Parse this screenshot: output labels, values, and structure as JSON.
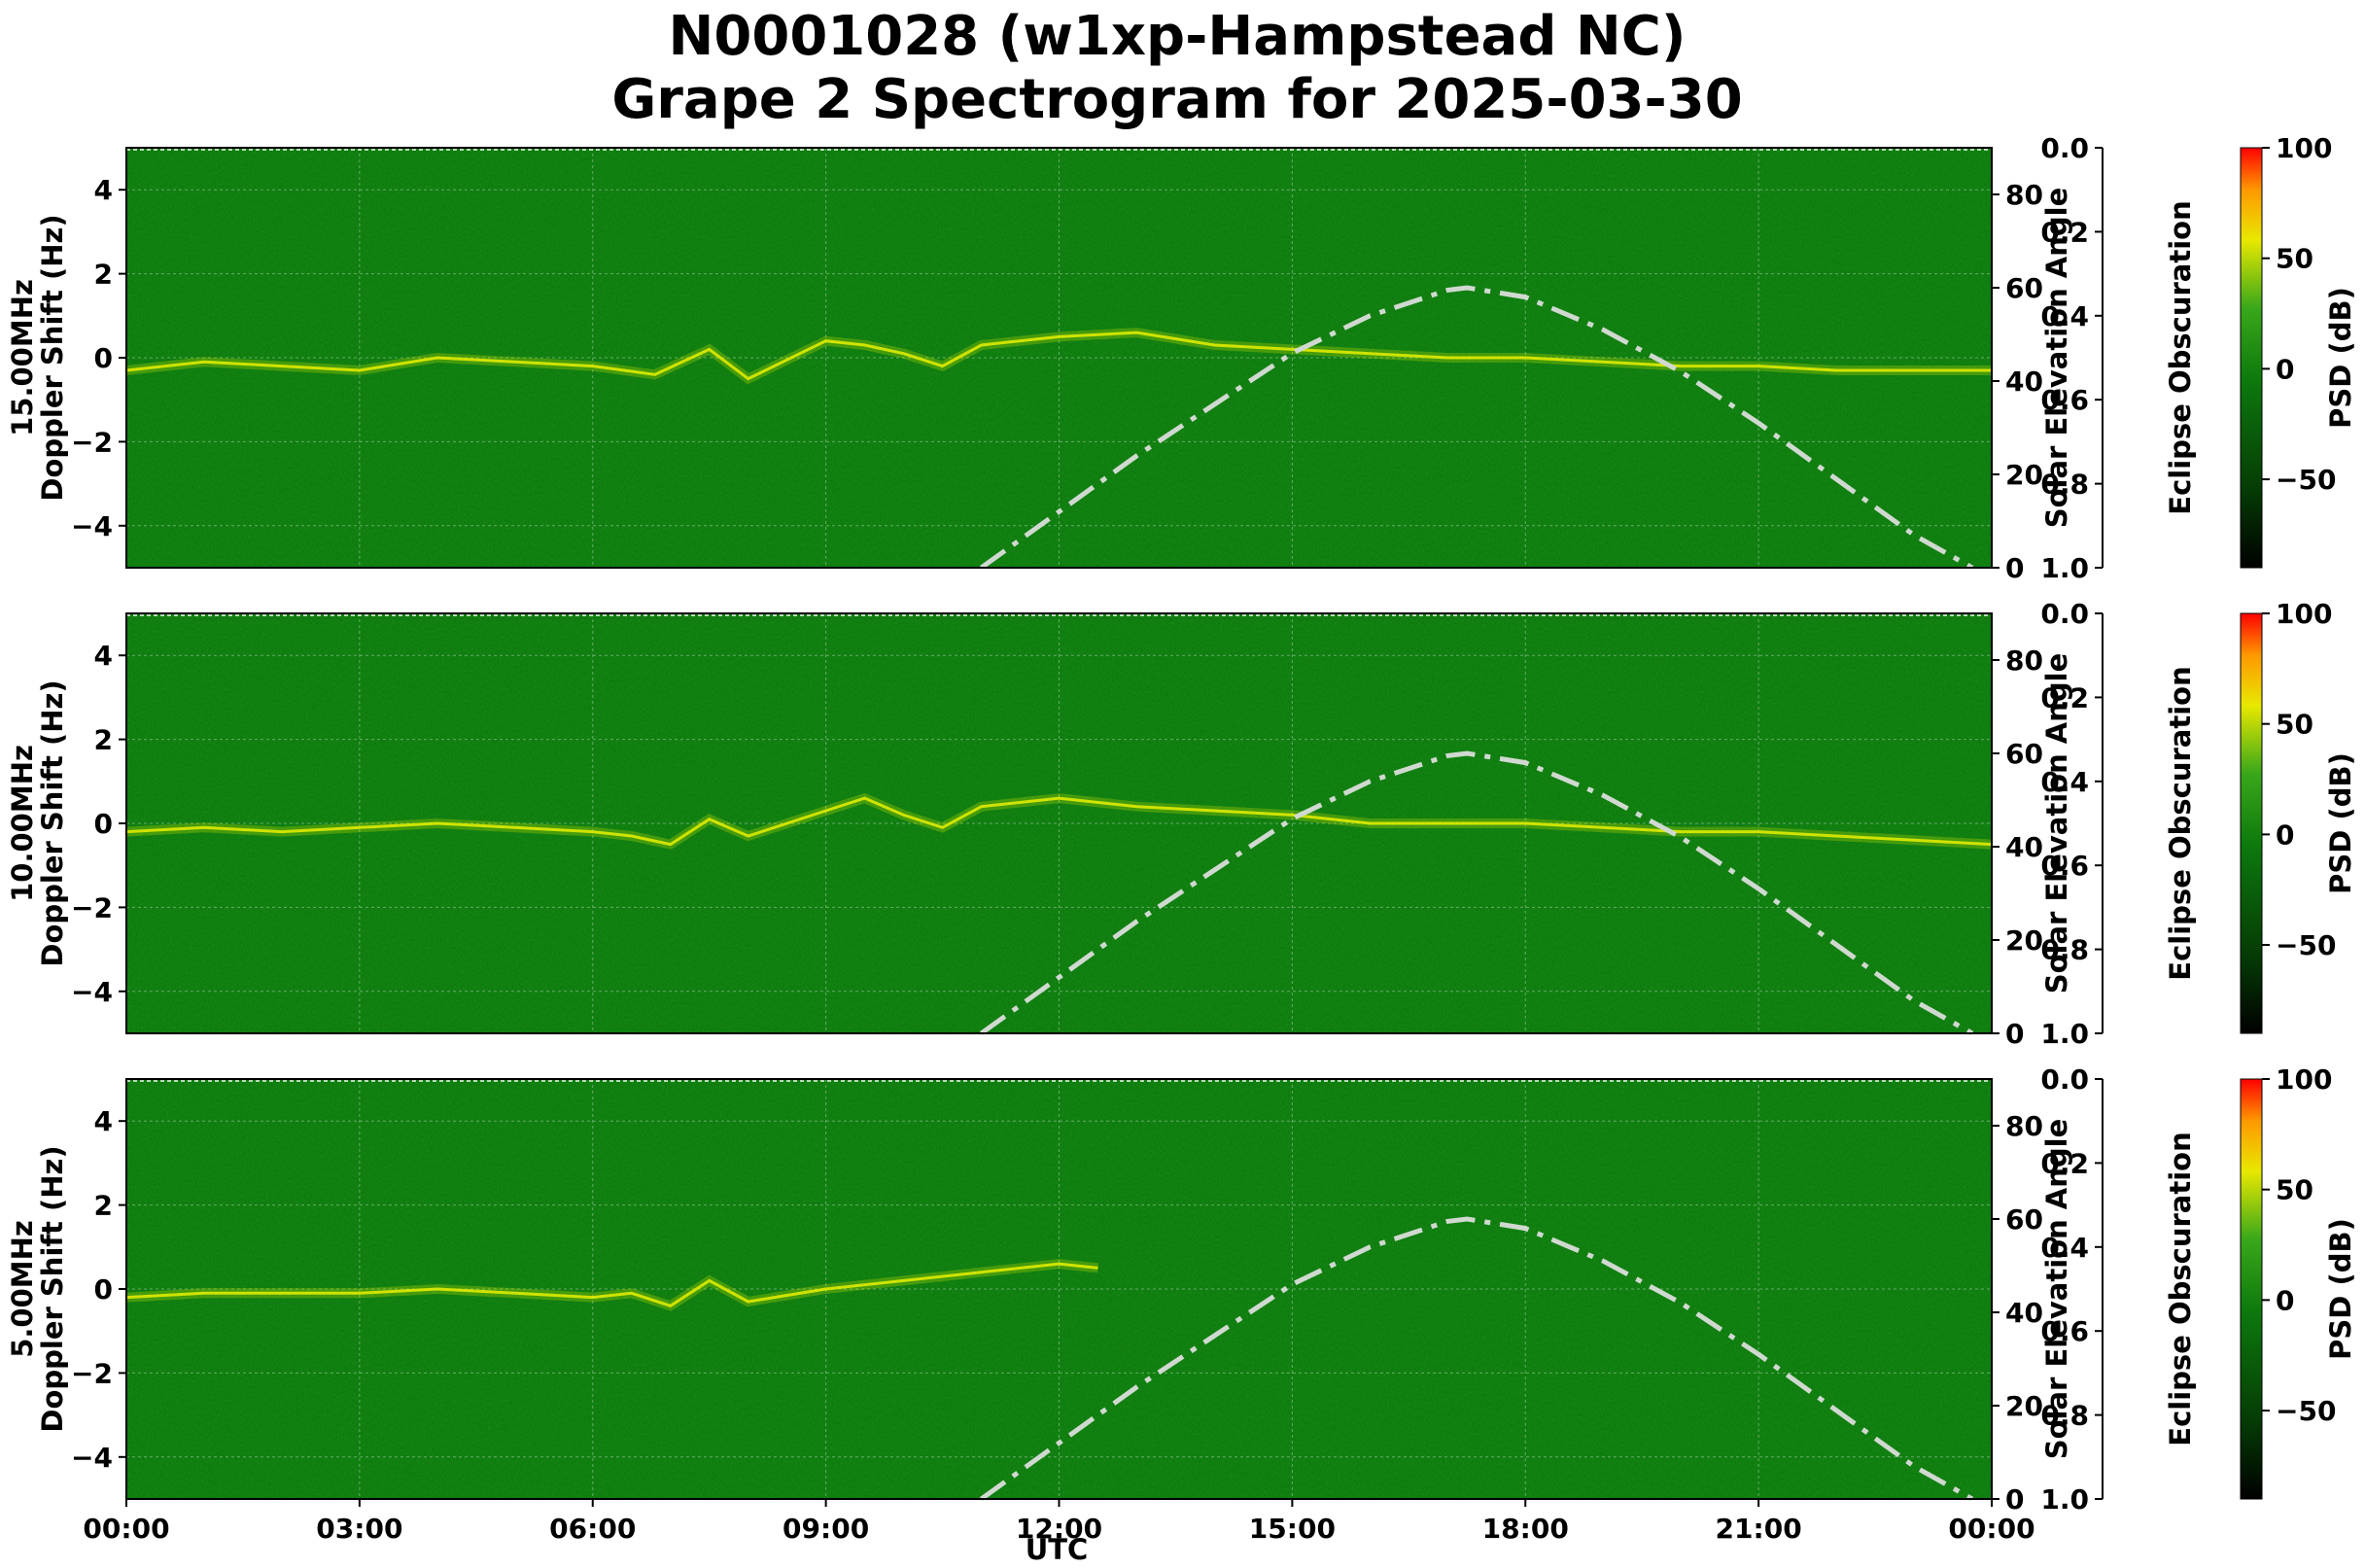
{
  "title_lines": [
    "N0001028 (w1xp-Hampstead NC)",
    "Grape 2 Spectrogram for 2025-03-30"
  ],
  "chart_data": [
    {
      "type": "heatmap",
      "panel": "15.00MHz",
      "ylabel": [
        "15.00MHz",
        "Doppler Shift (Hz)"
      ],
      "ylim": [
        -5,
        5
      ],
      "yticks": [
        4,
        2,
        0,
        -2,
        -4
      ],
      "ylim_right": [
        0,
        90
      ],
      "yticks_right": [
        0,
        20,
        40,
        60,
        80
      ],
      "ylabel_right": "Solar Elevation Angle",
      "ylim_eclipse": [
        1.0,
        0.0
      ],
      "yticks_eclipse": [
        "0.0",
        "0.2",
        "0.4",
        "0.6",
        "0.8",
        "1.0"
      ],
      "ylabel_eclipse": "Eclipse Obscuration",
      "colorbar": {
        "label": "PSD (dB)",
        "ticks": [
          100,
          50,
          0,
          -50
        ],
        "range": [
          -90,
          100
        ]
      },
      "solar_elevation": {
        "x_hours": [
          11.0,
          12.0,
          13.0,
          14.0,
          15.0,
          16.0,
          17.0,
          17.25,
          18.0,
          19.0,
          20.0,
          21.0,
          22.0,
          23.0,
          23.75
        ],
        "y_deg": [
          0,
          12,
          24,
          35,
          46,
          54,
          59.5,
          60,
          58,
          51,
          42,
          31,
          19,
          7,
          0
        ]
      },
      "trace": {
        "x_hours": [
          0,
          1,
          2,
          3,
          4,
          5,
          6,
          6.8,
          7.5,
          8,
          9,
          9.5,
          10,
          10.5,
          11,
          12,
          13,
          14,
          15,
          16,
          17,
          18,
          19,
          20,
          21,
          22,
          23,
          24
        ],
        "y_hz": [
          -0.3,
          -0.1,
          -0.2,
          -0.3,
          0.0,
          -0.1,
          -0.2,
          -0.4,
          0.2,
          -0.5,
          0.4,
          0.3,
          0.1,
          -0.2,
          0.3,
          0.5,
          0.6,
          0.3,
          0.2,
          0.1,
          0.0,
          0.0,
          -0.1,
          -0.2,
          -0.2,
          -0.3,
          -0.3,
          -0.3
        ]
      }
    },
    {
      "type": "heatmap",
      "panel": "10.00MHz",
      "ylabel": [
        "10.00MHz",
        "Doppler Shift (Hz)"
      ],
      "ylim": [
        -5,
        5
      ],
      "yticks": [
        4,
        2,
        0,
        -2,
        -4
      ],
      "ylim_right": [
        0,
        90
      ],
      "yticks_right": [
        0,
        20,
        40,
        60,
        80
      ],
      "ylabel_right": "Solar Elevation Angle",
      "ylim_eclipse": [
        1.0,
        0.0
      ],
      "yticks_eclipse": [
        "0.0",
        "0.2",
        "0.4",
        "0.6",
        "0.8",
        "1.0"
      ],
      "ylabel_eclipse": "Eclipse Obscuration",
      "colorbar": {
        "label": "PSD (dB)",
        "ticks": [
          100,
          50,
          0,
          -50
        ],
        "range": [
          -90,
          100
        ]
      },
      "solar_elevation": {
        "x_hours": [
          11.0,
          12.0,
          13.0,
          14.0,
          15.0,
          16.0,
          17.0,
          17.25,
          18.0,
          19.0,
          20.0,
          21.0,
          22.0,
          23.0,
          23.75
        ],
        "y_deg": [
          0,
          12,
          24,
          35,
          46,
          54,
          59.5,
          60,
          58,
          51,
          42,
          31,
          19,
          7,
          0
        ]
      },
      "trace": {
        "x_hours": [
          0,
          1,
          2,
          3,
          4,
          5,
          6,
          6.5,
          7,
          7.5,
          8,
          9,
          9.5,
          10,
          10.5,
          11,
          12,
          13,
          14,
          15,
          16,
          17,
          18,
          19,
          20,
          21,
          22,
          23,
          24
        ],
        "y_hz": [
          -0.2,
          -0.1,
          -0.2,
          -0.1,
          0.0,
          -0.1,
          -0.2,
          -0.3,
          -0.5,
          0.1,
          -0.3,
          0.3,
          0.6,
          0.2,
          -0.1,
          0.4,
          0.6,
          0.4,
          0.3,
          0.2,
          0.0,
          0.0,
          0.0,
          -0.1,
          -0.2,
          -0.2,
          -0.3,
          -0.4,
          -0.5
        ]
      }
    },
    {
      "type": "heatmap",
      "panel": "5.00MHz",
      "ylabel": [
        "5.00MHz",
        "Doppler Shift (Hz)"
      ],
      "ylim": [
        -5,
        5
      ],
      "yticks": [
        4,
        2,
        0,
        -2,
        -4
      ],
      "ylim_right": [
        0,
        90
      ],
      "yticks_right": [
        0,
        20,
        40,
        60,
        80
      ],
      "ylabel_right": "Solar Elevation Angle",
      "ylim_eclipse": [
        1.0,
        0.0
      ],
      "yticks_eclipse": [
        "0.0",
        "0.2",
        "0.4",
        "0.6",
        "0.8",
        "1.0"
      ],
      "ylabel_eclipse": "Eclipse Obscuration",
      "colorbar": {
        "label": "PSD (dB)",
        "ticks": [
          100,
          50,
          0,
          -50
        ],
        "range": [
          -90,
          100
        ]
      },
      "solar_elevation": {
        "x_hours": [
          11.0,
          12.0,
          13.0,
          14.0,
          15.0,
          16.0,
          17.0,
          17.25,
          18.0,
          19.0,
          20.0,
          21.0,
          22.0,
          23.0,
          23.75
        ],
        "y_deg": [
          0,
          12,
          24,
          35,
          46,
          54,
          59.5,
          60,
          58,
          51,
          42,
          31,
          19,
          7,
          0
        ]
      },
      "trace": {
        "x_hours": [
          0,
          1,
          2,
          3,
          4,
          5,
          6,
          6.5,
          7,
          7.5,
          8,
          9,
          10,
          11,
          12,
          12.5
        ],
        "y_hz": [
          -0.2,
          -0.1,
          -0.1,
          -0.1,
          0.0,
          -0.1,
          -0.2,
          -0.1,
          -0.4,
          0.2,
          -0.3,
          0.0,
          0.2,
          0.4,
          0.6,
          0.5
        ]
      }
    }
  ],
  "xaxis": {
    "label": "UTC",
    "xlim_hours": [
      0,
      24
    ],
    "ticks": [
      {
        "h": 0,
        "label": "00:00"
      },
      {
        "h": 3,
        "label": "03:00"
      },
      {
        "h": 6,
        "label": "06:00"
      },
      {
        "h": 9,
        "label": "09:00"
      },
      {
        "h": 12,
        "label": "12:00"
      },
      {
        "h": 15,
        "label": "15:00"
      },
      {
        "h": 18,
        "label": "18:00"
      },
      {
        "h": 21,
        "label": "21:00"
      },
      {
        "h": 24,
        "label": "00:00"
      }
    ]
  },
  "colors": {
    "background_green": "#0d7a0d",
    "signal_yellow": "#e8f000",
    "solar_curve": "#d0d9d0",
    "grid": "#9fc79f"
  }
}
